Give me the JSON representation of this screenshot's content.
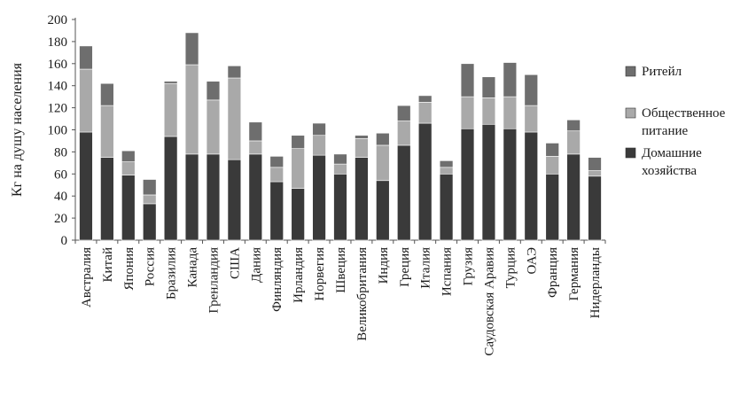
{
  "chart_data": {
    "type": "bar",
    "stacked": true,
    "ylabel": "Кг на душу населения",
    "ylim": [
      0,
      200
    ],
    "yticks": [
      0,
      20,
      40,
      60,
      80,
      100,
      120,
      140,
      160,
      180,
      200
    ],
    "grid": false,
    "legend_position": "right",
    "categories": [
      "Австралия",
      "Китай",
      "Япония",
      "Россия",
      "Бразилия",
      "Канада",
      "Гренландия",
      "США",
      "Дания",
      "Финляндия",
      "Ирландия",
      "Норвегия",
      "Швеция",
      "Великобритания",
      "Индия",
      "Греция",
      "Италия",
      "Испания",
      "Грузия",
      "Саудовская Аравия",
      "Турция",
      "ОАЭ",
      "Франция",
      "Германия",
      "Нидерланды"
    ],
    "series": [
      {
        "name": "Домашние хозяйства",
        "color": "#3a3a3a",
        "values": [
          98,
          75,
          59,
          33,
          94,
          78,
          78,
          73,
          78,
          53,
          47,
          77,
          60,
          75,
          54,
          86,
          106,
          60,
          101,
          105,
          101,
          98,
          60,
          78,
          58
        ]
      },
      {
        "name": "Общественное питание",
        "color": "#a9a9a9",
        "values": [
          57,
          47,
          12,
          8,
          48,
          81,
          49,
          74,
          12,
          13,
          36,
          18,
          9,
          17,
          32,
          22,
          19,
          6,
          29,
          24,
          29,
          24,
          16,
          21,
          5
        ]
      },
      {
        "name": "Ритейл",
        "color": "#6e6e6e",
        "values": [
          21,
          20,
          10,
          14,
          2,
          29,
          17,
          11,
          17,
          10,
          12,
          11,
          9,
          3,
          11,
          14,
          6,
          6,
          30,
          19,
          31,
          28,
          12,
          10,
          12
        ]
      }
    ],
    "legend_order": [
      "Ритейл",
      "Общественное питание",
      "Домашние хозяйства"
    ],
    "legend_lines": {
      "Ритейл": [
        "Ритейл"
      ],
      "Общественное питание": [
        "Общественное",
        "питание"
      ],
      "Домашние хозяйства": [
        "Домашние",
        "хозяйства"
      ]
    }
  }
}
